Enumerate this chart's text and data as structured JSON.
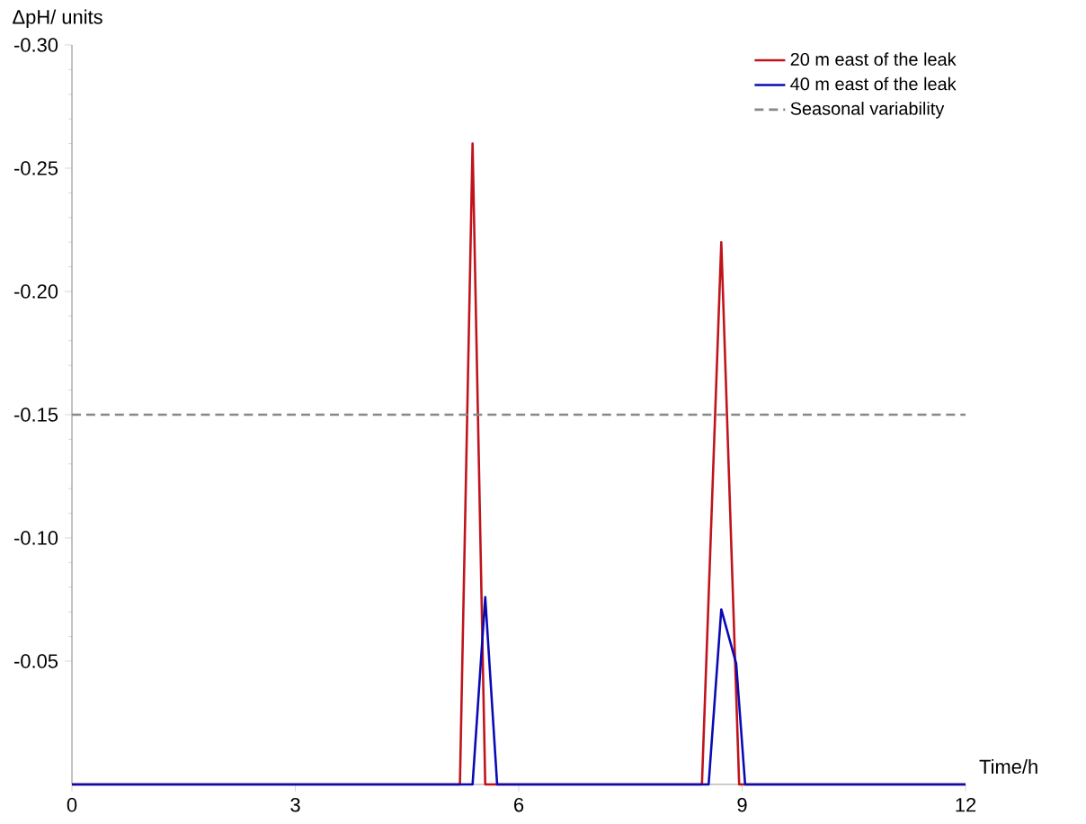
{
  "chart_data": {
    "type": "line",
    "xlabel": "Time/h",
    "ylabel": "ΔpH/ units",
    "xlim": [
      0,
      12
    ],
    "xticks": [
      0,
      3,
      6,
      9,
      12
    ],
    "ylim": [
      0,
      -0.3
    ],
    "yticks": [
      -0.05,
      {
        "value": -0.1,
        "label": "-0.10"
      },
      -0.15,
      {
        "value": -0.2,
        "label": "-0.20"
      },
      -0.25,
      {
        "value": -0.3,
        "label": "-0.30"
      }
    ],
    "legend": "top right",
    "grid": false,
    "series": [
      {
        "name": "20 m east of the leak",
        "color": "#c0141c",
        "line_style": "solid",
        "x": [
          0,
          5.21,
          5.38,
          5.55,
          8.46,
          8.72,
          8.96,
          12
        ],
        "values": [
          0,
          0,
          -0.26,
          0,
          0,
          -0.22,
          0,
          0
        ]
      },
      {
        "name": "40 m east of the leak",
        "color": "#0a0ab4",
        "line_style": "solid",
        "x": [
          0,
          5.38,
          5.55,
          5.71,
          8.55,
          8.72,
          8.92,
          9.04,
          12
        ],
        "values": [
          0,
          0,
          -0.076,
          0,
          0,
          -0.071,
          -0.049,
          0,
          0
        ]
      },
      {
        "name": "Seasonal variability",
        "color": "#888888",
        "line_style": "dashed",
        "x": [
          0,
          12
        ],
        "values": [
          -0.15,
          -0.15
        ]
      }
    ]
  }
}
